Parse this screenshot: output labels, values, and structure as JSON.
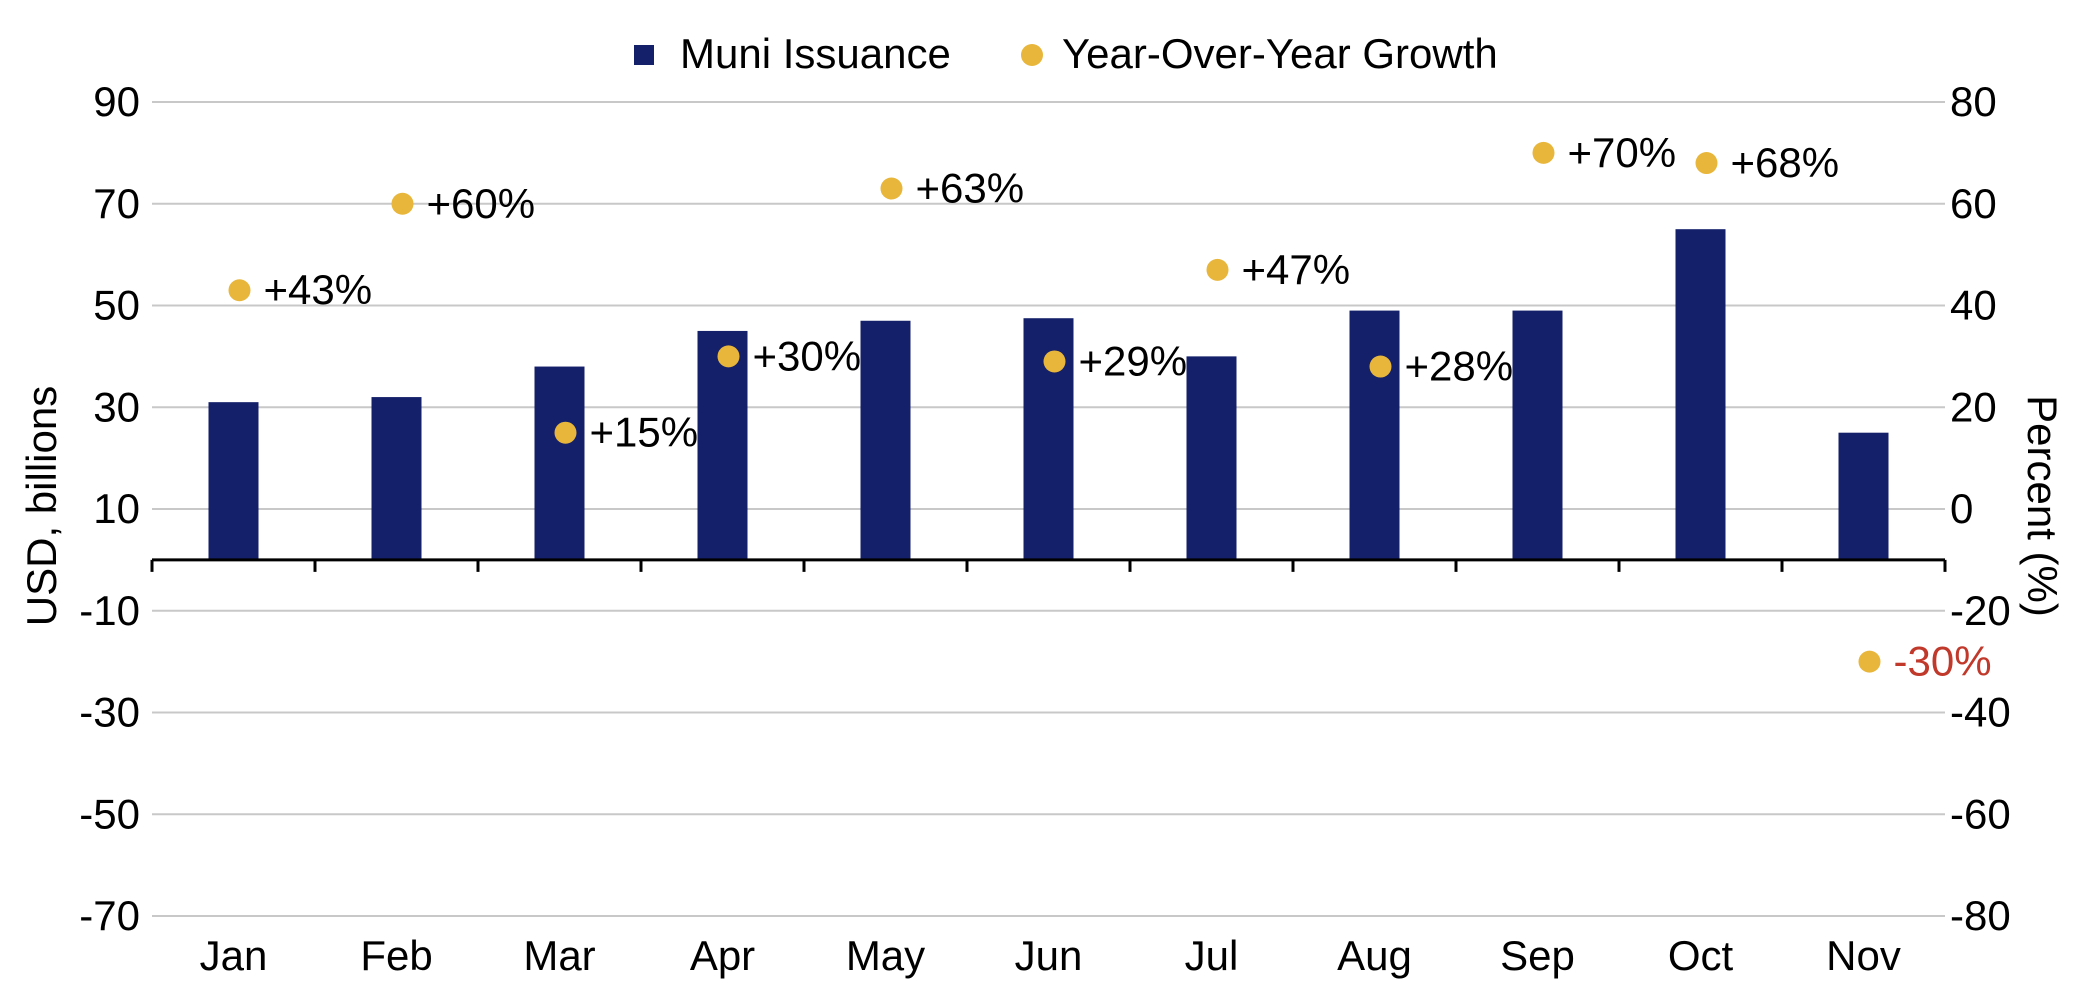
{
  "chart_data": {
    "type": "bar",
    "categories": [
      "Jan",
      "Feb",
      "Mar",
      "Apr",
      "May",
      "Jun",
      "Jul",
      "Aug",
      "Sep",
      "Oct",
      "Nov"
    ],
    "series": [
      {
        "name": "Muni Issuance",
        "type": "bar",
        "axis": "left",
        "color": "#15206a",
        "values": [
          31,
          32,
          38,
          45,
          47,
          47.5,
          40,
          49,
          49,
          65,
          25
        ]
      },
      {
        "name": "Year-Over-Year Growth",
        "type": "scatter",
        "axis": "right",
        "color": "#e8b63a",
        "values": [
          43,
          60,
          15,
          30,
          63,
          29,
          47,
          28,
          70,
          68,
          -30
        ],
        "labels": [
          "+43%",
          "+60%",
          "+15%",
          "+30%",
          "+63%",
          "+29%",
          "+47%",
          "+28%",
          "+70%",
          "+68%",
          "-30%"
        ],
        "label_colors": [
          "#000000",
          "#000000",
          "#000000",
          "#000000",
          "#000000",
          "#000000",
          "#000000",
          "#000000",
          "#000000",
          "#000000",
          "#c0392b"
        ]
      }
    ],
    "y_left": {
      "label": "USD, billions",
      "ylim": [
        -70,
        90
      ],
      "ticks": [
        90,
        70,
        50,
        30,
        10,
        -10,
        -30,
        -50,
        -70
      ]
    },
    "y_right": {
      "label": "Percent (%)",
      "ylim": [
        -80,
        80
      ],
      "ticks": [
        80,
        60,
        40,
        20,
        0,
        -20,
        -40,
        -60,
        -80
      ]
    },
    "grid": true,
    "legend_position": "top-center"
  }
}
